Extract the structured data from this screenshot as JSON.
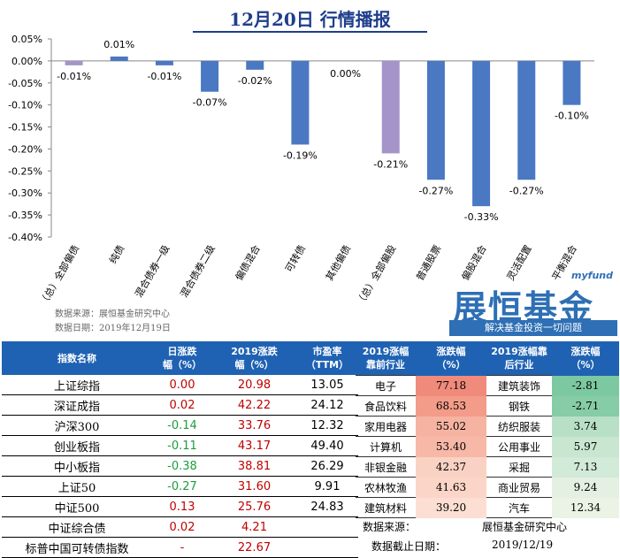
{
  "title": "12月20日  行情播报",
  "chart_data": {
    "type": "bar",
    "categories": [
      "（总）全部偏债",
      "纯债",
      "混合债券一级",
      "混合债券二级",
      "偏债混合",
      "可转债",
      "其他偏债",
      "（总）全部偏股",
      "普通股票",
      "偏股混合",
      "灵活配置",
      "平衡混合"
    ],
    "values": [
      -0.01,
      0.01,
      -0.01,
      -0.07,
      -0.02,
      -0.19,
      0.0,
      -0.21,
      -0.27,
      -0.33,
      -0.27,
      -0.1
    ],
    "data_labels": [
      "-0.01%",
      "0.01%",
      "-0.01%",
      "-0.07%",
      "-0.02%",
      "-0.19%",
      "0.00%",
      "-0.21%",
      "-0.27%",
      "-0.33%",
      "-0.27%",
      "-0.10%"
    ],
    "bar_colors": [
      "#a594c9",
      "#4a78c2",
      "#4a78c2",
      "#4a78c2",
      "#4a78c2",
      "#4a78c2",
      "#4a78c2",
      "#a594c9",
      "#4a78c2",
      "#4a78c2",
      "#4a78c2",
      "#4a78c2"
    ],
    "ylim": [
      -0.4,
      0.05
    ],
    "yticks": [
      "0.05%",
      "0.00%",
      "-0.05%",
      "-0.10%",
      "-0.15%",
      "-0.20%",
      "-0.25%",
      "-0.30%",
      "-0.35%",
      "-0.40%"
    ],
    "ytick_values": [
      0.05,
      0.0,
      -0.05,
      -0.1,
      -0.15,
      -0.2,
      -0.25,
      -0.3,
      -0.35,
      -0.4
    ],
    "grid": false
  },
  "source": {
    "line1": "数据来源：展恒基金研究中心",
    "line2": "数据日期：2019年12月19日"
  },
  "brand": {
    "small": "myfund",
    "big": "展恒基金",
    "slogan": "解决基金投资一切问题"
  },
  "index_table": {
    "headers": [
      "指数名称",
      "日涨跌\n幅（%）",
      "2019涨跌\n幅（%）",
      "市盈率\n（TTM）"
    ],
    "rows": [
      {
        "name": "上证综指",
        "day": "0.00",
        "ytd": "20.98",
        "pe": "13.05",
        "sign": "pos"
      },
      {
        "name": "深证成指",
        "day": "0.02",
        "ytd": "42.22",
        "pe": "24.12",
        "sign": "pos"
      },
      {
        "name": "沪深300",
        "day": "-0.14",
        "ytd": "33.76",
        "pe": "12.32",
        "sign": "neg"
      },
      {
        "name": "创业板指",
        "day": "-0.11",
        "ytd": "43.17",
        "pe": "49.40",
        "sign": "neg"
      },
      {
        "name": "中小板指",
        "day": "-0.38",
        "ytd": "38.81",
        "pe": "26.29",
        "sign": "neg"
      },
      {
        "name": "上证50",
        "day": "-0.27",
        "ytd": "31.60",
        "pe": "9.91",
        "sign": "neg"
      },
      {
        "name": "中证500",
        "day": "0.13",
        "ytd": "25.76",
        "pe": "24.83",
        "sign": "pos"
      },
      {
        "name": "中证综合债",
        "day": "0.02",
        "ytd": "4.21",
        "pe": "",
        "sign": "pos"
      },
      {
        "name": "标普中国可转债指数",
        "day": "-",
        "ytd": "22.67",
        "pe": "",
        "sign": "pos"
      }
    ]
  },
  "industry_table": {
    "headers": [
      "2019涨幅\n靠前行业",
      "涨跌幅\n（%）",
      "2019涨幅靠\n后行业",
      "涨跌幅\n（%）"
    ],
    "rows": [
      {
        "top": "电子",
        "top_val": "77.18",
        "top_color": "#f08a7a",
        "bot": "建筑装饰",
        "bot_val": "-2.81",
        "bot_color": "#7cc8a0"
      },
      {
        "top": "食品饮料",
        "top_val": "68.53",
        "top_color": "#f39c89",
        "bot": "钢铁",
        "bot_val": "-2.71",
        "bot_color": "#86cca6"
      },
      {
        "top": "家用电器",
        "top_val": "55.02",
        "top_color": "#f6b3a2",
        "bot": "纺织服装",
        "bot_val": "3.74",
        "bot_color": "#b8e0c6"
      },
      {
        "top": "计算机",
        "top_val": "53.40",
        "top_color": "#f7b8a7",
        "bot": "公用事业",
        "bot_val": "5.97",
        "bot_color": "#c8e6d0"
      },
      {
        "top": "非银金融",
        "top_val": "42.37",
        "top_color": "#fad2c3",
        "bot": "采掘",
        "bot_val": "7.13",
        "bot_color": "#d2ead8"
      },
      {
        "top": "农林牧渔",
        "top_val": "41.63",
        "top_color": "#fbd5c7",
        "bot": "商业贸易",
        "bot_val": "9.24",
        "bot_color": "#e4f0e2"
      },
      {
        "top": "建筑材料",
        "top_val": "39.20",
        "top_color": "#fcdfd2",
        "bot": "汽车",
        "bot_val": "12.34",
        "bot_color": "#eaf3e4"
      }
    ]
  },
  "footer": {
    "src_label": "数据来源：",
    "src_value": "展恒基金研究中心",
    "date_label": "数据截止日期：",
    "date_value": "2019/12/19"
  }
}
